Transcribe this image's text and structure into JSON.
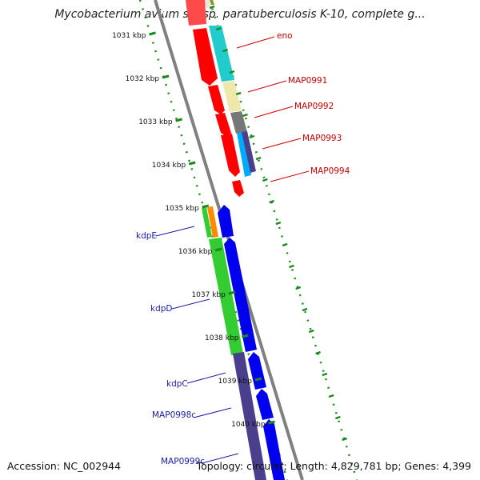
{
  "title": "Mycobacterium avium subsp. paratuberculosis K-10, complete g...",
  "footer": {
    "accession": "Accession: NC_002944",
    "summary": "Topology: circular; Length: 4,829,781 bp; Genes: 4,399"
  },
  "ticks": [
    {
      "label": "1031 kbp"
    },
    {
      "label": "1032 kbp"
    },
    {
      "label": "1033 kbp"
    },
    {
      "label": "1034 kbp"
    },
    {
      "label": "1035 kbp"
    },
    {
      "label": "1036 kbp"
    },
    {
      "label": "1037 kbp"
    },
    {
      "label": "1038 kbp"
    },
    {
      "label": "1039 kbp"
    },
    {
      "label": "1040 kbp"
    }
  ],
  "gene_labels": {
    "forward": [
      "eno",
      "MAP0991",
      "MAP0992",
      "MAP0993",
      "MAP0994"
    ],
    "reverse": [
      "kdpE",
      "kdpD",
      "kdpC",
      "MAP0998c",
      "MAP0999c"
    ]
  },
  "colors": {
    "backbone": "#808080",
    "forward_label": "#cc0000",
    "reverse_label": "#1a1aa8",
    "tick_marks": "#1a8a1a",
    "outer_dots": "#1a8a1a",
    "gene_red": "#ff0000",
    "gene_blue": "#0000ee",
    "gene_navy": "#4a3f8c",
    "gene_green": "#33cc33",
    "gene_cyan": "#22cccc",
    "gene_khaki": "#eee8aa",
    "gene_gray": "#777777",
    "gene_sky": "#00aaff",
    "gene_orange": "#ff8c00",
    "gene_olive": "#7a9a2a"
  }
}
